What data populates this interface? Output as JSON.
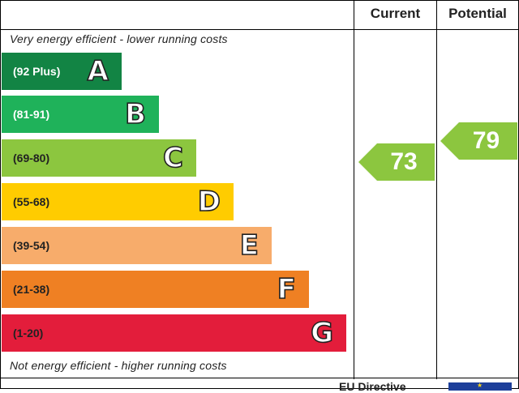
{
  "chart_data": {
    "type": "bar",
    "headers": {
      "current": "Current",
      "potential": "Potential"
    },
    "top_caption": "Very energy efficient - lower running costs",
    "bottom_caption": "Not energy efficient - higher running costs",
    "bands": [
      {
        "letter": "A",
        "range": "(92 Plus)",
        "color": "#128444",
        "text_color": "#ffffff"
      },
      {
        "letter": "B",
        "range": "(81-91)",
        "color": "#1fb25a",
        "text_color": "#ffffff"
      },
      {
        "letter": "C",
        "range": "(69-80)",
        "color": "#8cc63f",
        "text_color": "#222222"
      },
      {
        "letter": "D",
        "range": "(55-68)",
        "color": "#ffcc00",
        "text_color": "#222222"
      },
      {
        "letter": "E",
        "range": "(39-54)",
        "color": "#f7ac6b",
        "text_color": "#222222"
      },
      {
        "letter": "F",
        "range": "(21-38)",
        "color": "#ef8023",
        "text_color": "#222222"
      },
      {
        "letter": "G",
        "range": "(1-20)",
        "color": "#e31d3b",
        "text_color": "#222222"
      }
    ],
    "current": {
      "value": 73,
      "label": "73",
      "band": "C",
      "color": "#8cc63f"
    },
    "potential": {
      "value": 79,
      "label": "79",
      "band": "C",
      "color": "#8cc63f"
    }
  },
  "footer": {
    "text": "EU Directive"
  }
}
